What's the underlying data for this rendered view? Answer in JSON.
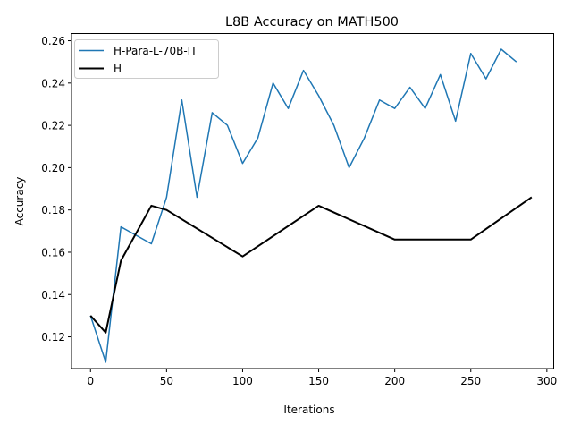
{
  "chart_data": {
    "type": "line",
    "title": "L8B Accuracy on MATH500",
    "xlabel": "Iterations",
    "ylabel": "Accuracy",
    "xlim": [
      -12.5,
      304.5
    ],
    "ylim": [
      0.105,
      0.2634
    ],
    "xticks": [
      0,
      50,
      100,
      150,
      200,
      250,
      300
    ],
    "xtick_labels": [
      "0",
      "50",
      "100",
      "150",
      "200",
      "250",
      "300"
    ],
    "yticks": [
      0.12,
      0.14,
      0.16,
      0.18,
      0.2,
      0.22,
      0.24,
      0.26
    ],
    "ytick_labels": [
      "0.12",
      "0.14",
      "0.16",
      "0.18",
      "0.20",
      "0.22",
      "0.24",
      "0.26"
    ],
    "grid": false,
    "legend_position": "upper left",
    "series": [
      {
        "name": "H-Para-L-70B-IT",
        "color": "#1f77b4",
        "linewidth": 1.5,
        "x": [
          0,
          10,
          20,
          40,
          50,
          60,
          70,
          80,
          90,
          100,
          110,
          120,
          130,
          140,
          150,
          160,
          170,
          180,
          190,
          200,
          210,
          220,
          230,
          240,
          250,
          260,
          270,
          280
        ],
        "values": [
          0.13,
          0.108,
          0.172,
          0.164,
          0.186,
          0.232,
          0.186,
          0.226,
          0.22,
          0.202,
          0.214,
          0.24,
          0.228,
          0.246,
          0.234,
          0.22,
          0.2,
          0.214,
          0.232,
          0.228,
          0.238,
          0.228,
          0.244,
          0.222,
          0.254,
          0.242,
          0.256,
          0.25
        ]
      },
      {
        "name": "H",
        "color": "#000000",
        "linewidth": 2,
        "x": [
          0,
          10,
          20,
          40,
          50,
          100,
          150,
          200,
          250,
          290
        ],
        "values": [
          0.13,
          0.122,
          0.156,
          0.182,
          0.18,
          0.158,
          0.182,
          0.166,
          0.166,
          0.186
        ]
      }
    ]
  }
}
